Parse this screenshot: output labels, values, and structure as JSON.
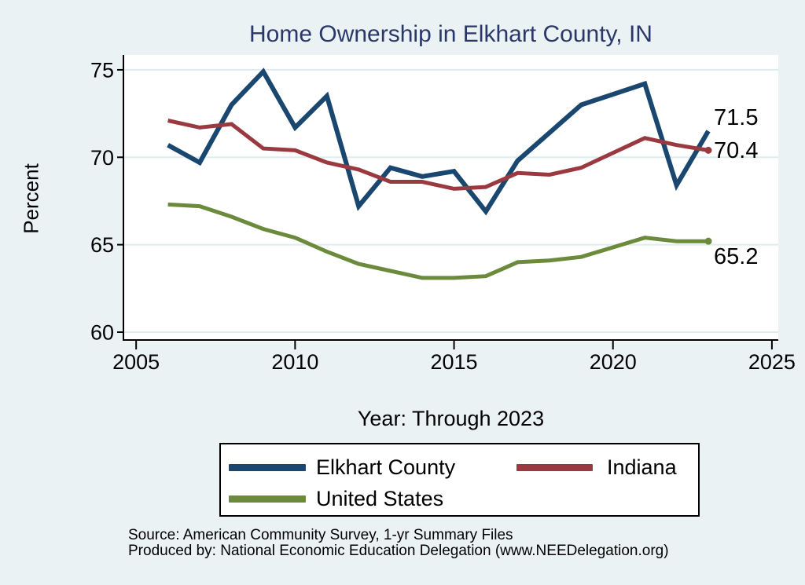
{
  "chart_data": {
    "type": "line",
    "title": "Home Ownership in Elkhart County, IN",
    "xlabel": "Year: Through 2023",
    "ylabel": "Percent",
    "x": [
      2006,
      2007,
      2008,
      2009,
      2010,
      2011,
      2012,
      2013,
      2014,
      2015,
      2016,
      2017,
      2018,
      2019,
      2020,
      2021,
      2022,
      2023
    ],
    "series": [
      {
        "name": "Elkhart County",
        "color": "#1a476f",
        "width": 6,
        "end_marker": false,
        "end_label": "71.5",
        "values": [
          70.7,
          69.7,
          73.0,
          74.9,
          71.7,
          73.5,
          67.2,
          69.4,
          68.9,
          69.2,
          66.9,
          69.8,
          71.4,
          73.0,
          null,
          74.2,
          68.4,
          71.5
        ]
      },
      {
        "name": "Indiana",
        "color": "#9a3a40",
        "width": 5,
        "end_marker": true,
        "end_label": "70.4",
        "values": [
          72.1,
          71.7,
          71.9,
          70.5,
          70.4,
          69.7,
          69.3,
          68.6,
          68.6,
          68.2,
          68.3,
          69.1,
          69.0,
          69.4,
          null,
          71.1,
          70.7,
          70.4
        ]
      },
      {
        "name": "United States",
        "color": "#6c8a3c",
        "width": 5,
        "end_marker": true,
        "end_label": "65.2",
        "values": [
          67.3,
          67.2,
          66.6,
          65.9,
          65.4,
          64.6,
          63.9,
          63.5,
          63.1,
          63.1,
          63.2,
          64.0,
          64.1,
          64.3,
          null,
          65.4,
          65.2,
          65.2
        ]
      }
    ],
    "x_ticks": [
      2005,
      2010,
      2015,
      2020,
      2025
    ],
    "y_ticks": [
      60,
      65,
      70,
      75
    ],
    "xlim": [
      2004.6,
      2025.2
    ],
    "ylim": [
      59.55,
      75.85
    ],
    "grid": "horizontal",
    "legend_position": "bottom"
  },
  "source": {
    "line1": "Source: American Community Survey, 1-yr Summary Files",
    "line2": "Produced by: National Economic Education Delegation (www.NEEDelegation.org)"
  },
  "colors": {
    "background": "#eaf2f3",
    "plot_background": "#ffffff",
    "grid": "#dfedef",
    "axis": "#000000",
    "title": "#2a3769"
  }
}
